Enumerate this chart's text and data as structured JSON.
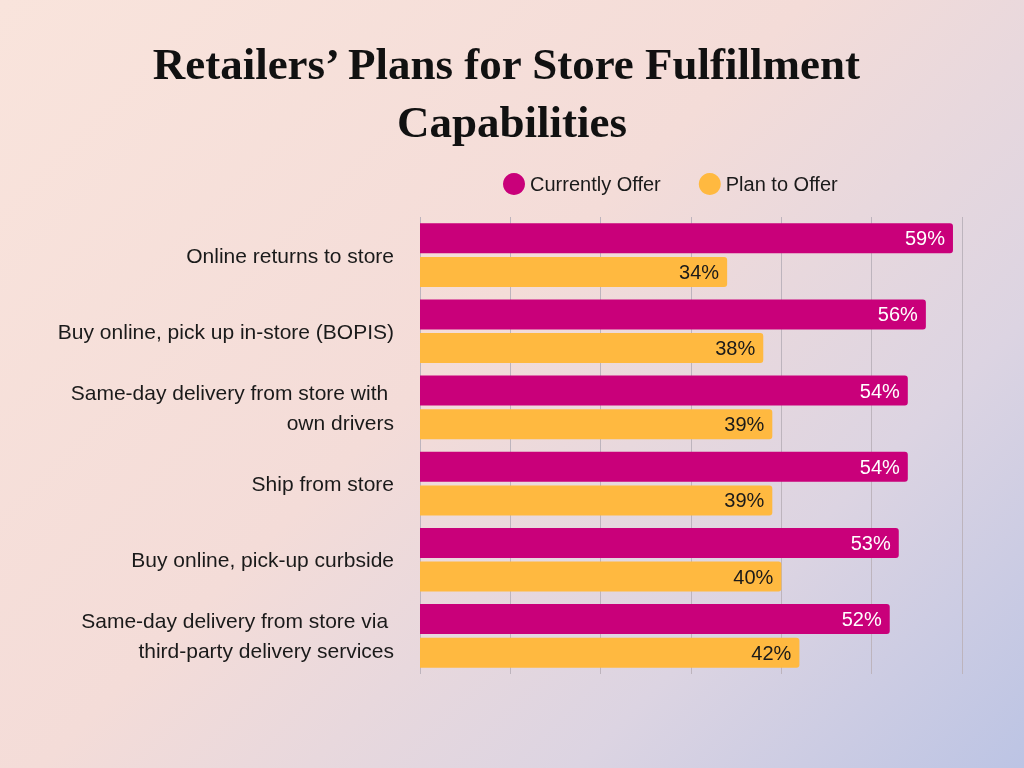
{
  "chart_data": {
    "type": "bar",
    "orientation": "horizontal",
    "title": "Retailers’ Plans for Store Fulfillment Capabilities",
    "categories": [
      "Online returns to store",
      "Buy online, pick up in-store (BOPIS)",
      "Same-day delivery from store with own drivers",
      "Ship from store",
      "Buy online, pick-up curbside",
      "Same-day delivery from store via third-party delivery services"
    ],
    "series": [
      {
        "name": "Currently Offer",
        "color": "#c9007a",
        "values": [
          59,
          56,
          54,
          54,
          53,
          52
        ],
        "value_labels": [
          "59%",
          "56%",
          "54%",
          "54%",
          "53%",
          "52%"
        ]
      },
      {
        "name": "Plan to Offer",
        "color": "#ffb940",
        "values": [
          34,
          38,
          39,
          39,
          40,
          42
        ],
        "value_labels": [
          "34%",
          "38%",
          "39%",
          "39%",
          "40%",
          "42%"
        ]
      }
    ],
    "xlim": [
      0,
      60
    ],
    "xticks": [
      0,
      10,
      20,
      30,
      40,
      50,
      60
    ],
    "tick_labels": "y",
    "grid": "x",
    "legend": "top"
  }
}
